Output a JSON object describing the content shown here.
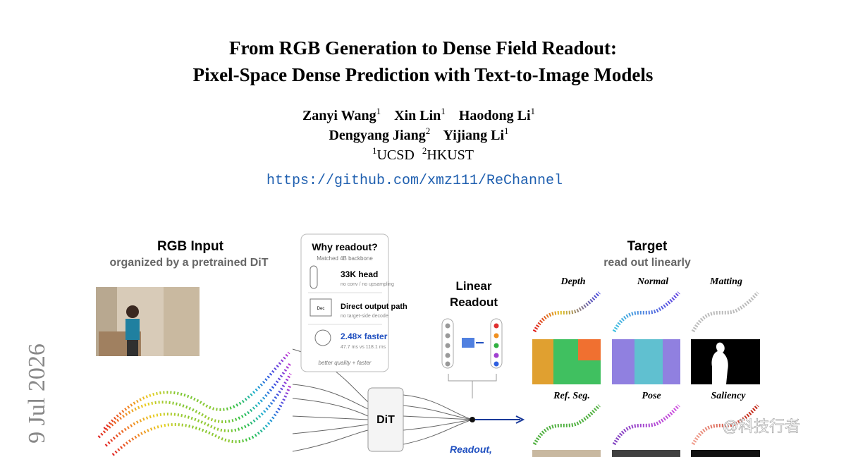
{
  "side_date": "9 Jul 2026",
  "title": [
    "From RGB Generation to Dense Field Readout:",
    "Pixel-Space Dense Prediction with Text-to-Image Models"
  ],
  "authors": [
    [
      {
        "name": "Zanyi Wang",
        "sup": "1"
      },
      {
        "name": "Xin Lin",
        "sup": "1"
      },
      {
        "name": "Haodong Li",
        "sup": "1"
      }
    ],
    [
      {
        "name": "Dengyang Jiang",
        "sup": "2"
      },
      {
        "name": "Yijiang Li",
        "sup": "1"
      }
    ]
  ],
  "affiliations": [
    {
      "sup": "1",
      "name": "UCSD"
    },
    {
      "sup": "2",
      "name": "HKUST"
    }
  ],
  "url": "https://github.com/xmz111/ReChannel",
  "figure": {
    "input": {
      "title": "RGB Input",
      "subtitle": "organized by a pretrained DiT"
    },
    "card": {
      "title": "Why readout?",
      "subtitle": "Matched 4B backbone",
      "items": [
        {
          "head": "33K head",
          "note": "no conv / no upsampling"
        },
        {
          "icon": "Dec",
          "head": "Direct output path",
          "note": "no target-side decode"
        },
        {
          "head": "2.48× faster",
          "note": "47.7 ms vs 118.1 ms"
        }
      ],
      "footer": "better quality + faster"
    },
    "readout": {
      "title": [
        "Linear",
        "Readout"
      ]
    },
    "backbone": "DiT",
    "readout_label": "Readout,",
    "target": {
      "title": "Target",
      "subtitle": "read out linearly",
      "tasks": [
        "Depth",
        "Normal",
        "Matting",
        "Ref. Seg.",
        "Pose",
        "Saliency"
      ]
    }
  },
  "watermark": "@科技行者"
}
